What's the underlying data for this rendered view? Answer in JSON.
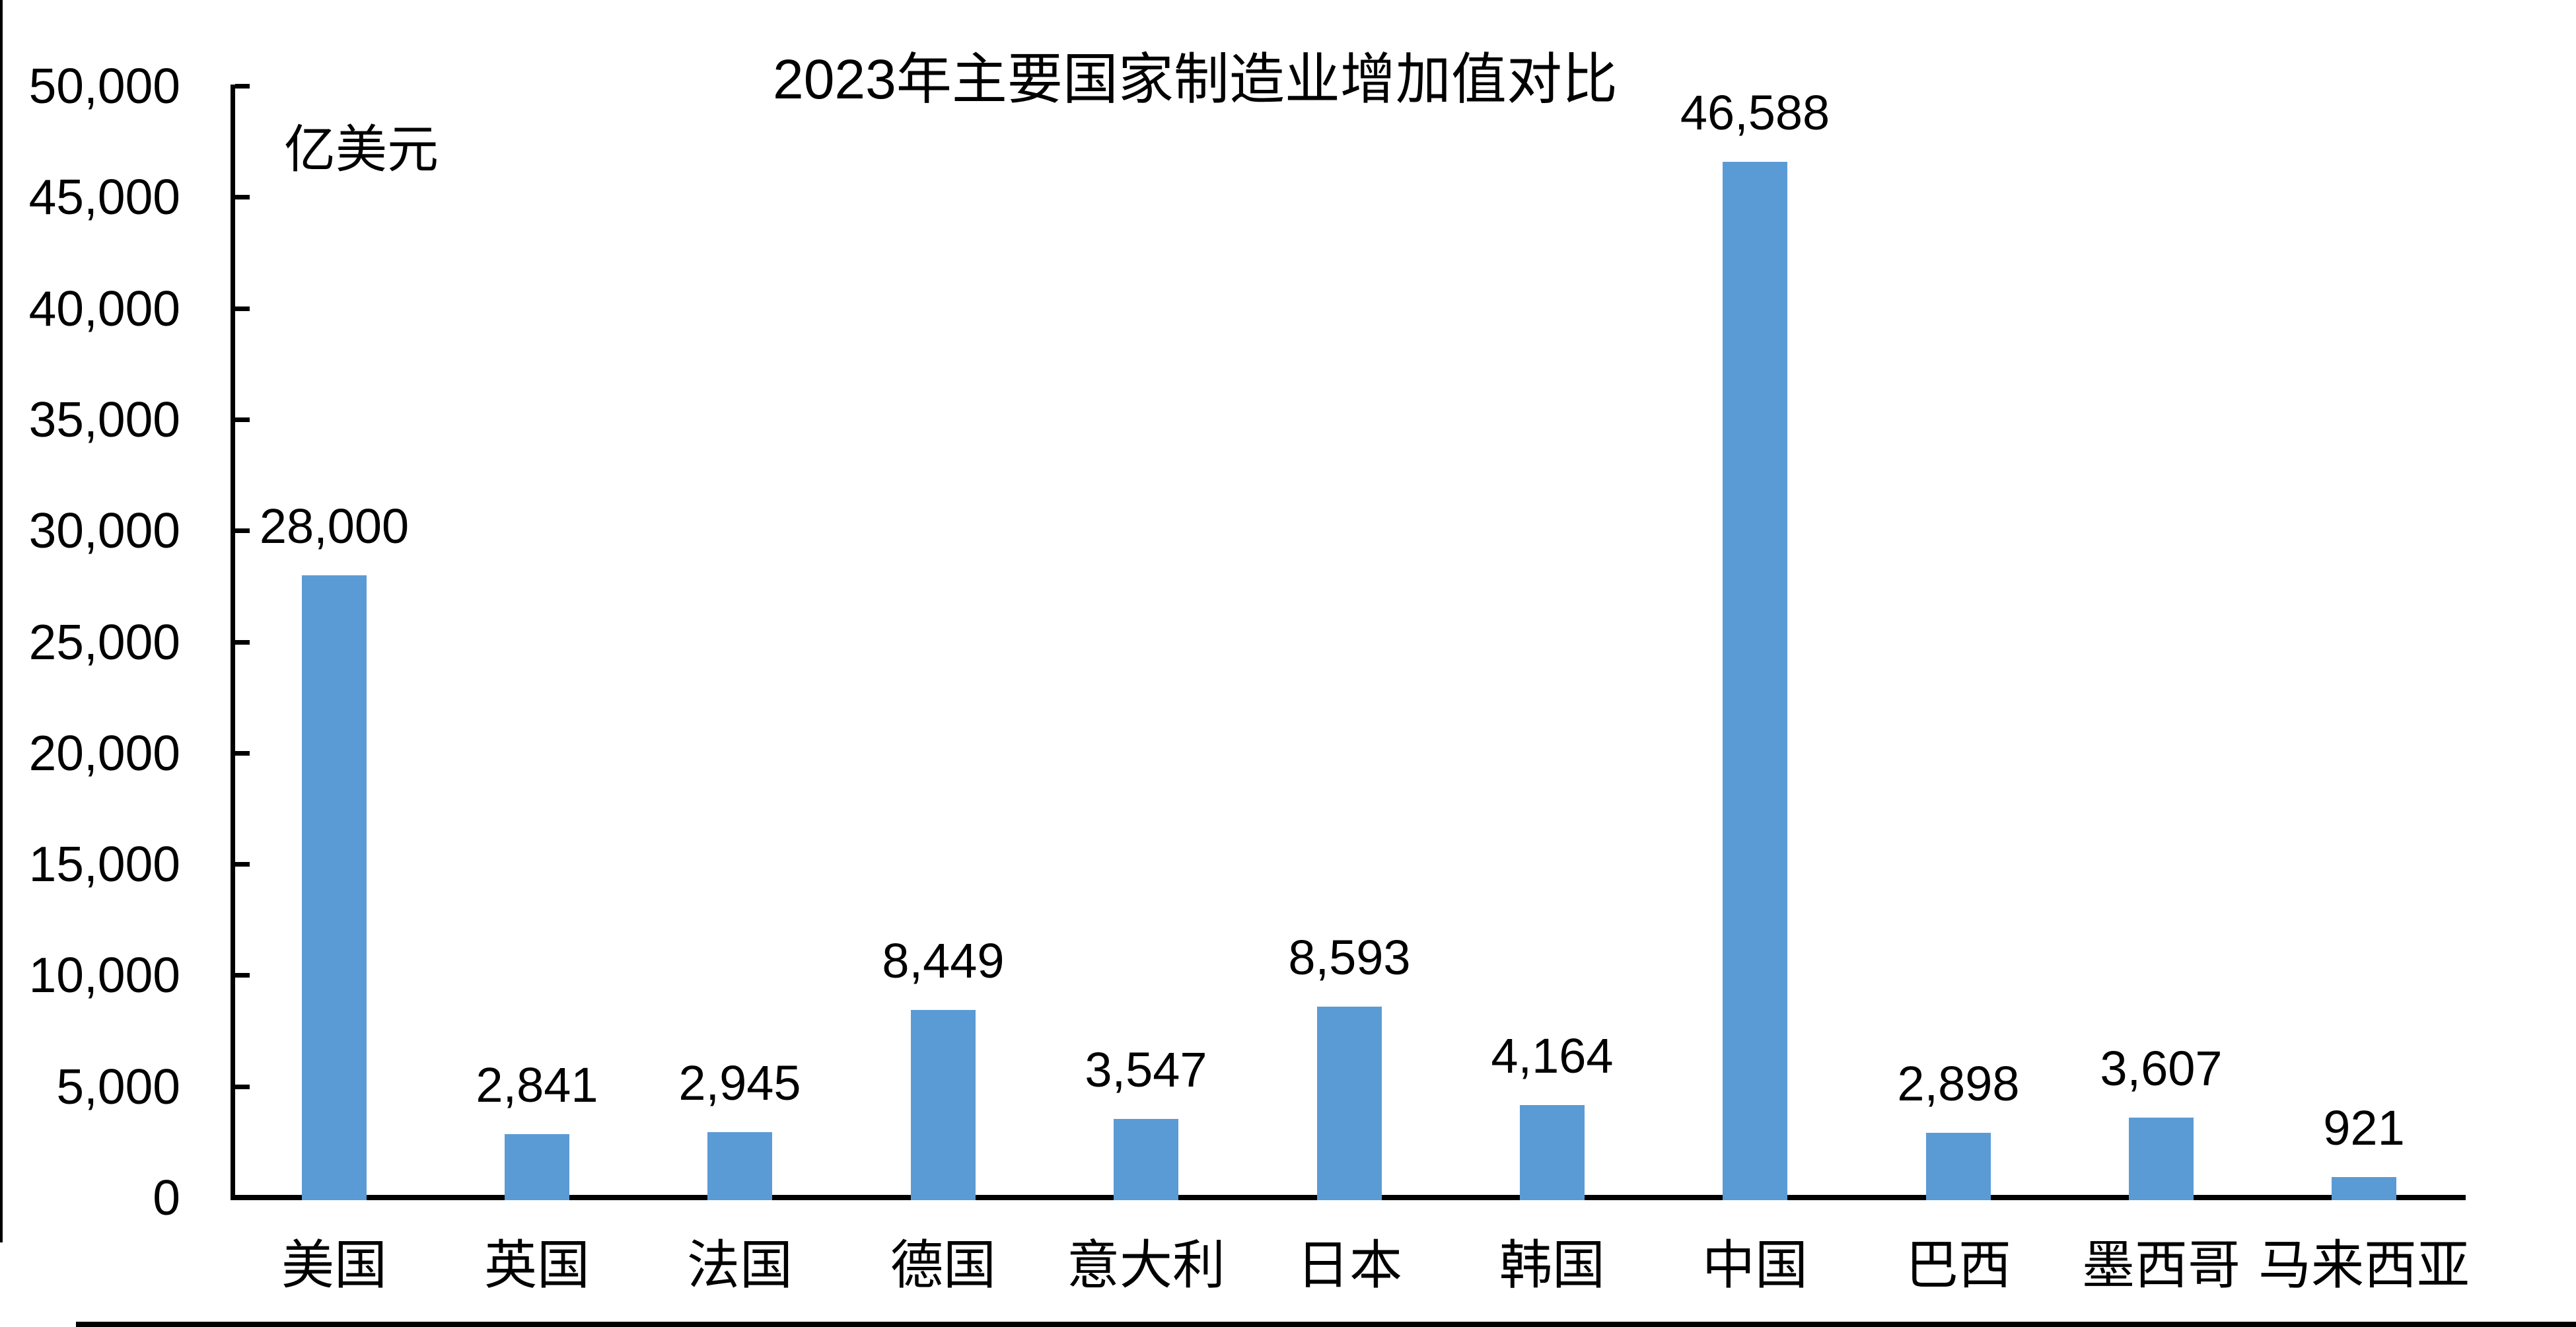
{
  "chart_data": {
    "type": "bar",
    "title": "2023年主要国家制造业增加值对比",
    "unit_label": "亿美元",
    "categories": [
      "美国",
      "英国",
      "法国",
      "德国",
      "意大利",
      "日本",
      "韩国",
      "中国",
      "巴西",
      "墨西哥",
      "马来西亚"
    ],
    "values": [
      28000,
      2841,
      2945,
      8449,
      3547,
      8593,
      4164,
      46588,
      2898,
      3607,
      921
    ],
    "data_labels": [
      "28,000",
      "2,841",
      "2,945",
      "8,449",
      "3,547",
      "8,593",
      "4,164",
      "46,588",
      "2,898",
      "3,607",
      "921"
    ],
    "ylim": [
      0,
      50000
    ],
    "ytick_step": 5000,
    "ytick_labels": [
      "0",
      "5,000",
      "10,000",
      "15,000",
      "20,000",
      "25,000",
      "30,000",
      "35,000",
      "40,000",
      "45,000",
      "50,000"
    ],
    "grid": false,
    "legend": "none",
    "bar_color": "#5B9BD5",
    "axis_color": "#000000"
  }
}
